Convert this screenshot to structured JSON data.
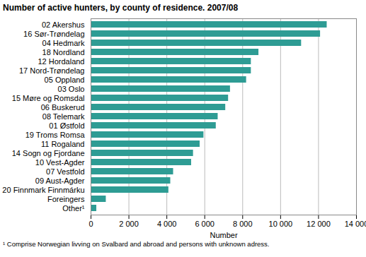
{
  "chart_data": {
    "type": "bar",
    "orientation": "horizontal",
    "title": "Number of active hunters, by county of residence. 2007/08",
    "x_label": "Number",
    "footnote": "¹ Comprise Norwegian livving on Svalbard and abroad and persons with unknown adress.",
    "categories": [
      "02 Akershus",
      "16 Sør-Trøndelag",
      "04 Hedmark",
      "18 Nordland",
      "12 Hordaland",
      "17 Nord-Trøndelag",
      "05 Oppland",
      "03 Oslo",
      "15 Møre og Romsdal",
      "06 Buskerud",
      "08 Telemark",
      "01 Østfold",
      "19 Troms Romsa",
      "11 Rogaland",
      "14 Sogn og Fjordane",
      "10 Vest-Agder",
      "07 Vestfold",
      "09 Aust-Agder",
      "20 Finnmark Finnmárku",
      "Foreingers",
      "Other¹"
    ],
    "values": [
      12450,
      12100,
      11100,
      8850,
      8450,
      8450,
      8200,
      7350,
      7250,
      7100,
      6700,
      6600,
      5950,
      5750,
      5400,
      5300,
      4350,
      4200,
      4100,
      800,
      300
    ],
    "color": "#2e9c94",
    "xlim": [
      0,
      14000
    ],
    "xticks": [
      0,
      {
        "value": 2000,
        "label": "2 000"
      },
      {
        "value": 4000,
        "label": "4 000"
      },
      {
        "value": 6000,
        "label": "6 000"
      },
      {
        "value": 8000,
        "label": "8 000"
      },
      {
        "value": 10000,
        "label": "10 000"
      },
      {
        "value": 12000,
        "label": "12 000"
      },
      {
        "value": 14000,
        "label": "14 000"
      }
    ],
    "grid": true
  }
}
